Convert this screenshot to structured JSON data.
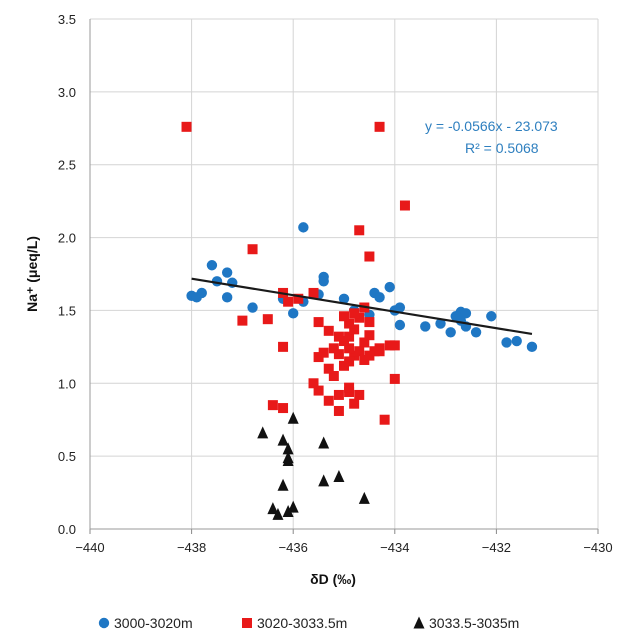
{
  "chart_data": {
    "type": "scatter",
    "title": "",
    "xlabel": "δD (‰)",
    "ylabel": "Na⁺ (μeq/L)",
    "xlim": [
      -440,
      -430
    ],
    "ylim": [
      0.0,
      3.5
    ],
    "x_ticks": [
      "−440",
      "−438",
      "−436",
      "−434",
      "−432",
      "−430"
    ],
    "y_ticks": [
      "0.0",
      "0.5",
      "1.0",
      "1.5",
      "2.0",
      "2.5",
      "3.0",
      "3.5"
    ],
    "grid": true,
    "legend_position": "bottom",
    "trendline": {
      "series": "3000-3020m",
      "slope": -0.0566,
      "intercept": -23.073,
      "equation": "y = -0.0566x - 23.073",
      "r_squared": "R² = 0.5068",
      "x_range": [
        -438.0,
        -431.3
      ]
    },
    "series": [
      {
        "name": "3000-3020m",
        "marker": "circle",
        "color": "#1f77c4",
        "points": [
          [
            -438.0,
            1.6
          ],
          [
            -437.9,
            1.59
          ],
          [
            -437.8,
            1.62
          ],
          [
            -437.6,
            1.81
          ],
          [
            -437.5,
            1.7
          ],
          [
            -437.3,
            1.76
          ],
          [
            -437.3,
            1.59
          ],
          [
            -437.2,
            1.69
          ],
          [
            -436.8,
            1.52
          ],
          [
            -436.2,
            1.58
          ],
          [
            -436.0,
            1.48
          ],
          [
            -435.8,
            2.07
          ],
          [
            -435.8,
            1.56
          ],
          [
            -435.5,
            1.61
          ],
          [
            -435.4,
            1.73
          ],
          [
            -435.4,
            1.7
          ],
          [
            -435.0,
            1.58
          ],
          [
            -434.8,
            1.5
          ],
          [
            -434.5,
            1.47
          ],
          [
            -434.4,
            1.62
          ],
          [
            -434.3,
            1.59
          ],
          [
            -434.1,
            1.66
          ],
          [
            -434.0,
            1.5
          ],
          [
            -433.9,
            1.4
          ],
          [
            -433.9,
            1.52
          ],
          [
            -433.4,
            1.39
          ],
          [
            -433.1,
            1.41
          ],
          [
            -432.9,
            1.35
          ],
          [
            -432.8,
            1.46
          ],
          [
            -432.7,
            1.49
          ],
          [
            -432.7,
            1.43
          ],
          [
            -432.6,
            1.39
          ],
          [
            -432.6,
            1.48
          ],
          [
            -432.4,
            1.35
          ],
          [
            -432.1,
            1.46
          ],
          [
            -431.8,
            1.28
          ],
          [
            -431.6,
            1.29
          ],
          [
            -431.3,
            1.25
          ]
        ]
      },
      {
        "name": "3020-3033.5m",
        "marker": "square",
        "color": "#e81919",
        "points": [
          [
            -438.1,
            2.76
          ],
          [
            -434.3,
            2.76
          ],
          [
            -433.8,
            2.22
          ],
          [
            -436.8,
            1.92
          ],
          [
            -434.7,
            2.05
          ],
          [
            -434.5,
            1.87
          ],
          [
            -437.0,
            1.43
          ],
          [
            -436.5,
            1.44
          ],
          [
            -436.2,
            1.62
          ],
          [
            -436.1,
            1.56
          ],
          [
            -435.9,
            1.58
          ],
          [
            -435.6,
            1.62
          ],
          [
            -435.5,
            1.42
          ],
          [
            -435.3,
            1.36
          ],
          [
            -436.2,
            1.25
          ],
          [
            -435.4,
            1.21
          ],
          [
            -435.5,
            1.18
          ],
          [
            -435.2,
            1.24
          ],
          [
            -435.1,
            1.2
          ],
          [
            -435.0,
            1.29
          ],
          [
            -434.9,
            1.32
          ],
          [
            -434.8,
            1.37
          ],
          [
            -434.7,
            1.45
          ],
          [
            -434.6,
            1.28
          ],
          [
            -434.5,
            1.33
          ],
          [
            -434.4,
            1.22
          ],
          [
            -434.3,
            1.24
          ],
          [
            -434.1,
            1.26
          ],
          [
            -434.0,
            1.26
          ],
          [
            -434.8,
            1.19
          ],
          [
            -434.9,
            1.41
          ],
          [
            -435.0,
            1.46
          ],
          [
            -434.8,
            1.48
          ],
          [
            -434.6,
            1.52
          ],
          [
            -434.5,
            1.42
          ],
          [
            -435.2,
            1.05
          ],
          [
            -435.3,
            1.1
          ],
          [
            -435.0,
            1.12
          ],
          [
            -434.9,
            1.15
          ],
          [
            -434.7,
            1.22
          ],
          [
            -434.6,
            1.16
          ],
          [
            -434.5,
            1.19
          ],
          [
            -434.3,
            1.22
          ],
          [
            -435.1,
            1.32
          ],
          [
            -434.9,
            1.24
          ],
          [
            -435.5,
            0.95
          ],
          [
            -435.6,
            1.0
          ],
          [
            -435.3,
            0.88
          ],
          [
            -435.1,
            0.92
          ],
          [
            -434.9,
            0.94
          ],
          [
            -434.7,
            0.92
          ],
          [
            -434.9,
            0.97
          ],
          [
            -435.1,
            0.81
          ],
          [
            -434.8,
            0.86
          ],
          [
            -434.0,
            1.03
          ],
          [
            -434.2,
            0.75
          ],
          [
            -436.4,
            0.85
          ],
          [
            -436.2,
            0.83
          ]
        ]
      },
      {
        "name": "3033.5-3035m",
        "marker": "triangle",
        "color": "#111111",
        "points": [
          [
            -436.6,
            0.66
          ],
          [
            -436.2,
            0.61
          ],
          [
            -436.0,
            0.76
          ],
          [
            -436.1,
            0.55
          ],
          [
            -436.1,
            0.49
          ],
          [
            -436.1,
            0.47
          ],
          [
            -436.2,
            0.3
          ],
          [
            -436.4,
            0.14
          ],
          [
            -436.3,
            0.1
          ],
          [
            -436.1,
            0.12
          ],
          [
            -436.0,
            0.15
          ],
          [
            -435.4,
            0.59
          ],
          [
            -435.4,
            0.33
          ],
          [
            -435.1,
            0.36
          ],
          [
            -434.6,
            0.21
          ]
        ]
      }
    ]
  }
}
